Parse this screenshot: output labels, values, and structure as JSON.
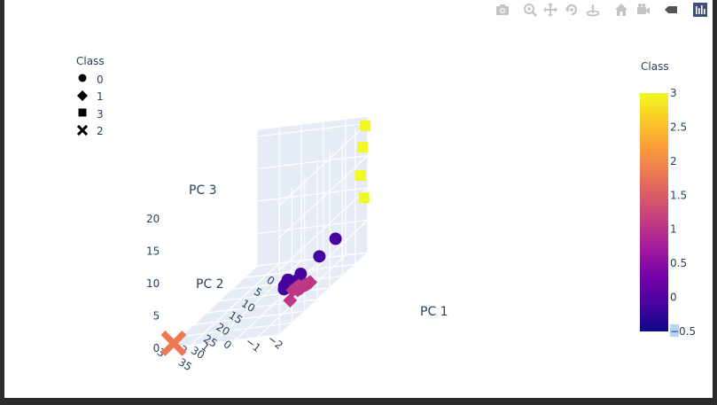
{
  "modebar": {
    "icons": [
      "camera-icon",
      "zoom-icon",
      "pan-icon",
      "orbit-rotation-icon",
      "turntable-rotation-icon",
      "reset-view-icon",
      "camera-reset-icon",
      "hover-toggle-icon",
      "plotly-logo-icon"
    ]
  },
  "legend": {
    "title": "Class",
    "items": [
      {
        "label": "0",
        "symbol": "circle"
      },
      {
        "label": "1",
        "symbol": "diamond"
      },
      {
        "label": "3",
        "symbol": "square"
      },
      {
        "label": "2",
        "symbol": "x"
      }
    ]
  },
  "colorbar": {
    "title": "Class",
    "ticks": [
      "3",
      "2.5",
      "2",
      "1.5",
      "1",
      "0.5",
      "0",
      "−0.5"
    ],
    "range": [
      -0.5,
      3
    ],
    "colors": [
      "#0d0887",
      "#46039f",
      "#7201a8",
      "#9c179e",
      "#bd3786",
      "#d8576b",
      "#ed7953",
      "#fb9f3a",
      "#fdca26",
      "#f0f921"
    ]
  },
  "chart_data": {
    "type": "scatter3d",
    "axes": {
      "x": {
        "label": "PC 1",
        "ticks": [
          "35",
          "30",
          "25",
          "20",
          "15",
          "10",
          "5",
          "0"
        ]
      },
      "y": {
        "label": "PC 2",
        "ticks": [
          "−2",
          "−1",
          "0",
          "1",
          "2",
          "3"
        ]
      },
      "z": {
        "label": "PC 3",
        "ticks": [
          "0",
          "5",
          "10",
          "15",
          "20"
        ],
        "range": [
          0,
          21
        ]
      }
    },
    "series": [
      {
        "name": "0",
        "class": 0,
        "symbol": "circle",
        "points": [
          {
            "x": 4,
            "y": -1,
            "z": 4
          },
          {
            "x": 6,
            "y": -0.5,
            "z": 2.2
          },
          {
            "x": 9,
            "y": 0,
            "z": 0.8
          },
          {
            "x": 10,
            "y": 0,
            "z": 0.3
          },
          {
            "x": 11,
            "y": 0,
            "z": 0.2
          },
          {
            "x": 12,
            "y": 0,
            "z": 0.2
          },
          {
            "x": 12.5,
            "y": 0.2,
            "z": 0.1
          },
          {
            "x": 13,
            "y": 0,
            "z": 0.1
          },
          {
            "x": 13,
            "y": 0.3,
            "z": 0
          },
          {
            "x": 11.5,
            "y": 0.3,
            "z": 0
          },
          {
            "x": 10.5,
            "y": 0.5,
            "z": 0
          },
          {
            "x": 9.5,
            "y": 0.5,
            "z": 0
          },
          {
            "x": 9,
            "y": 0.6,
            "z": -0.1
          },
          {
            "x": 8.5,
            "y": 0.6,
            "z": -0.1
          },
          {
            "x": 8,
            "y": 0.7,
            "z": -0.2
          },
          {
            "x": 12,
            "y": 0.4,
            "z": 0.2
          },
          {
            "x": 11,
            "y": 0.5,
            "z": -0.1
          }
        ]
      },
      {
        "name": "1",
        "class": 1,
        "symbol": "diamond",
        "points": [
          {
            "x": 19,
            "y": -1,
            "z": 1.5
          },
          {
            "x": 18,
            "y": -1,
            "z": 1.4
          },
          {
            "x": 17.5,
            "y": -1,
            "z": 1.3
          },
          {
            "x": 17,
            "y": -1,
            "z": 1.4
          },
          {
            "x": 16.5,
            "y": -1,
            "z": 1.3
          },
          {
            "x": 16,
            "y": -1,
            "z": 1.2
          },
          {
            "x": 15.5,
            "y": -1,
            "z": 1.1
          },
          {
            "x": 15,
            "y": -1,
            "z": 1.0
          },
          {
            "x": 14.5,
            "y": -1,
            "z": 1.0
          },
          {
            "x": 14,
            "y": -1,
            "z": 0.9
          },
          {
            "x": 16,
            "y": -0.6,
            "z": 1.0
          },
          {
            "x": 15,
            "y": -0.6,
            "z": 0.9
          },
          {
            "x": 16.5,
            "y": -0.5,
            "z": 0.8
          },
          {
            "x": 22,
            "y": -1,
            "z": 1.0
          }
        ]
      },
      {
        "name": "3",
        "class": 3,
        "symbol": "square",
        "points": [
          {
            "x": 1,
            "y": -2,
            "z": 20
          },
          {
            "x": 2,
            "y": -2,
            "z": 17
          },
          {
            "x": 3,
            "y": -2,
            "z": 13
          },
          {
            "x": 1.5,
            "y": -2,
            "z": 9
          }
        ]
      },
      {
        "name": "2",
        "class": 2,
        "symbol": "x",
        "points": [
          {
            "x": 33,
            "y": 3,
            "z": 0
          }
        ]
      }
    ]
  }
}
